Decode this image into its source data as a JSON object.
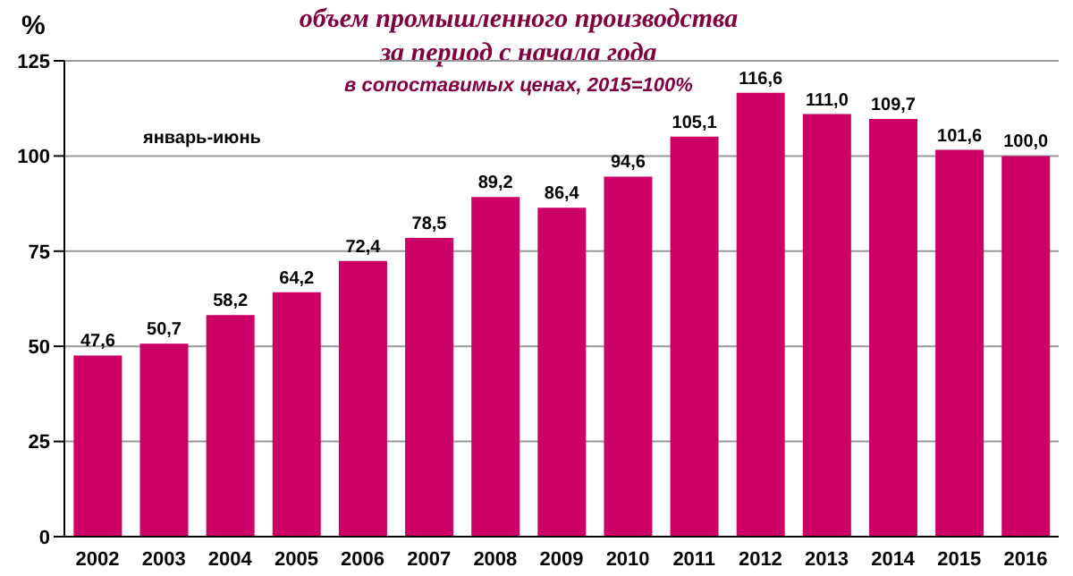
{
  "chart_data": {
    "type": "bar",
    "title": "объем промышленного производства\nза период с начала года",
    "subtitle": "в сопоставимых ценах, 2015=100%",
    "ylabel": "%",
    "annotations": [
      "январь-июнь"
    ],
    "categories": [
      "2002",
      "2003",
      "2004",
      "2005",
      "2006",
      "2007",
      "2008",
      "2009",
      "2010",
      "2011",
      "2012",
      "2013",
      "2014",
      "2015",
      "2016"
    ],
    "values": [
      47.6,
      50.7,
      58.2,
      64.2,
      72.4,
      78.5,
      89.2,
      86.4,
      94.6,
      105.1,
      116.6,
      111.0,
      109.7,
      101.6,
      100.0
    ],
    "value_labels": [
      "47,6",
      "50,7",
      "58,2",
      "64,2",
      "72,4",
      "78,5",
      "89,2",
      "86,4",
      "94,6",
      "105,1",
      "116,6",
      "111,0",
      "109,7",
      "101,6",
      "100,0"
    ],
    "color": "#cc0066",
    "ylim": [
      0,
      125
    ],
    "yticks": [
      0,
      25,
      50,
      75,
      100,
      125
    ],
    "grid": "y"
  }
}
